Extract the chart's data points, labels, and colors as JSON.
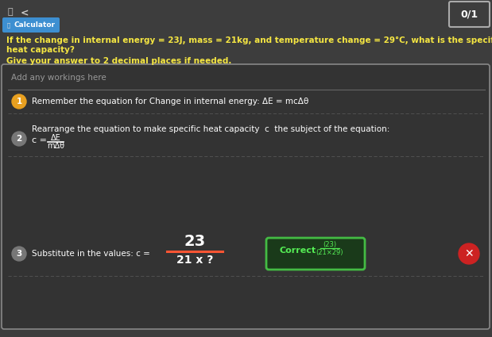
{
  "bg_color": "#3d3d3d",
  "panel_color": "#333333",
  "text_color_white": "#ffffff",
  "text_color_light": "#cccccc",
  "text_color_gray": "#999999",
  "text_yellow": "#f5e642",
  "accent_blue": "#3d8fd1",
  "green_box_bg": "#1a3a1a",
  "green_box_border": "#44bb44",
  "green_text": "#55ee55",
  "red_circle_color": "#cc2222",
  "score_box_bg": "#3d3d3d",
  "underline_red": "#ff5533",
  "dashed_color": "#555555",
  "solid_sep_color": "#666666",
  "title": "0/1",
  "calculator_label": "Calculator",
  "question_line1": "If the change in internal energy = 23J, mass = 21kg, and temperature change = 29°C, what is the specific",
  "question_line2": "heat capacity?",
  "instruction": "Give your answer to 2 decimal places if needed.",
  "workings_placeholder": "Add any workings here",
  "step1_num": "1",
  "step1_text": "Remember the equation for Change in internal energy: ΔE = mcΔθ",
  "step2_num": "2",
  "step2_text": "Rearrange the equation to make specific heat capacity  c  the subject of the equation:",
  "step2_eq_top": "ΔE",
  "step2_eq_bottom": "mΔθ",
  "step2_c": "c =",
  "step3_num": "3",
  "step3_text": "Substitute in the values: c =",
  "step3_num_top": "23",
  "step3_denom": "21 x ?",
  "correct_label": "Correct",
  "correct_frac_top": "(23)",
  "correct_frac_bot": "(21×29)"
}
